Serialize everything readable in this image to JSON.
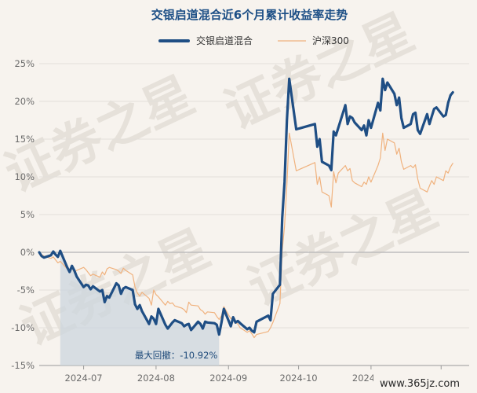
{
  "chart_data": {
    "type": "line",
    "title": "交银启道混合近6个月累计收益率走势",
    "ylim": [
      -15,
      25
    ],
    "yticks": [
      -15,
      -10,
      -5,
      0,
      5,
      10,
      15,
      20,
      25
    ],
    "ytick_labels": [
      "-15%",
      "-10%",
      "-5%",
      "0%",
      "5%",
      "10%",
      "15%",
      "20%",
      "25%"
    ],
    "x_start": "2024-06-12",
    "x_end": "2024-12-13",
    "xticks": [
      {
        "date": "2024-07-01",
        "label": "2024-07"
      },
      {
        "date": "2024-08-01",
        "label": "2024-08"
      },
      {
        "date": "2024-09-01",
        "label": "2024-09"
      },
      {
        "date": "2024-10-01",
        "label": "2024-10"
      },
      {
        "date": "2024-11-01",
        "label": "2024-11"
      },
      {
        "date": "2024-12-01",
        "label": "2024-12"
      }
    ],
    "grid": true,
    "legend_position": "top",
    "series": [
      {
        "name": "交银启道混合",
        "color": "#1f4e84",
        "points": [
          [
            "2024-06-12",
            0.0
          ],
          [
            "2024-06-13",
            -0.5
          ],
          [
            "2024-06-14",
            -0.7
          ],
          [
            "2024-06-17",
            -0.4
          ],
          [
            "2024-06-18",
            0.1
          ],
          [
            "2024-06-19",
            -0.3
          ],
          [
            "2024-06-20",
            -0.6
          ],
          [
            "2024-06-21",
            0.2
          ],
          [
            "2024-06-24",
            -2.0
          ],
          [
            "2024-06-25",
            -2.6
          ],
          [
            "2024-06-26",
            -1.8
          ],
          [
            "2024-06-27",
            -2.4
          ],
          [
            "2024-06-28",
            -3.2
          ],
          [
            "2024-07-01",
            -4.6
          ],
          [
            "2024-07-02",
            -4.3
          ],
          [
            "2024-07-03",
            -4.4
          ],
          [
            "2024-07-04",
            -4.9
          ],
          [
            "2024-07-05",
            -4.5
          ],
          [
            "2024-07-08",
            -5.2
          ],
          [
            "2024-07-09",
            -5.0
          ],
          [
            "2024-07-10",
            -6.6
          ],
          [
            "2024-07-11",
            -5.8
          ],
          [
            "2024-07-12",
            -6.0
          ],
          [
            "2024-07-15",
            -4.1
          ],
          [
            "2024-07-16",
            -4.4
          ],
          [
            "2024-07-17",
            -5.5
          ],
          [
            "2024-07-18",
            -4.8
          ],
          [
            "2024-07-19",
            -4.6
          ],
          [
            "2024-07-22",
            -5.0
          ],
          [
            "2024-07-23",
            -6.9
          ],
          [
            "2024-07-24",
            -7.5
          ],
          [
            "2024-07-25",
            -7.0
          ],
          [
            "2024-07-26",
            -7.8
          ],
          [
            "2024-07-29",
            -9.5
          ],
          [
            "2024-07-30",
            -8.5
          ],
          [
            "2024-07-31",
            -8.8
          ],
          [
            "2024-08-01",
            -9.5
          ],
          [
            "2024-08-02",
            -7.5
          ],
          [
            "2024-08-05",
            -9.6
          ],
          [
            "2024-08-06",
            -10.1
          ],
          [
            "2024-08-07",
            -9.7
          ],
          [
            "2024-08-08",
            -9.3
          ],
          [
            "2024-08-09",
            -9.0
          ],
          [
            "2024-08-12",
            -9.4
          ],
          [
            "2024-08-13",
            -9.8
          ],
          [
            "2024-08-14",
            -9.6
          ],
          [
            "2024-08-15",
            -9.5
          ],
          [
            "2024-08-16",
            -10.3
          ],
          [
            "2024-08-19",
            -9.2
          ],
          [
            "2024-08-20",
            -9.5
          ],
          [
            "2024-08-21",
            -10.1
          ],
          [
            "2024-08-22",
            -9.2
          ],
          [
            "2024-08-23",
            -9.3
          ],
          [
            "2024-08-26",
            -9.4
          ],
          [
            "2024-08-27",
            -9.6
          ],
          [
            "2024-08-28",
            -10.9
          ],
          [
            "2024-08-29",
            -9.3
          ],
          [
            "2024-08-30",
            -7.5
          ],
          [
            "2024-09-02",
            -9.8
          ],
          [
            "2024-09-03",
            -8.6
          ],
          [
            "2024-09-04",
            -9.3
          ],
          [
            "2024-09-05",
            -9.1
          ],
          [
            "2024-09-06",
            -9.4
          ],
          [
            "2024-09-09",
            -10.2
          ],
          [
            "2024-09-10",
            -10.0
          ],
          [
            "2024-09-11",
            -10.4
          ],
          [
            "2024-09-12",
            -10.6
          ],
          [
            "2024-09-13",
            -9.2
          ],
          [
            "2024-09-18",
            -8.4
          ],
          [
            "2024-09-19",
            -9.0
          ],
          [
            "2024-09-20",
            -5.5
          ],
          [
            "2024-09-23",
            -4.3
          ],
          [
            "2024-09-24",
            4.5
          ],
          [
            "2024-09-25",
            9.3
          ],
          [
            "2024-09-26",
            17.5
          ],
          [
            "2024-09-27",
            23.0
          ],
          [
            "2024-09-30",
            16.3
          ],
          [
            "2024-10-08",
            17.0
          ],
          [
            "2024-10-09",
            14.0
          ],
          [
            "2024-10-10",
            15.0
          ],
          [
            "2024-10-11",
            12.0
          ],
          [
            "2024-10-14",
            11.5
          ],
          [
            "2024-10-15",
            10.9
          ],
          [
            "2024-10-16",
            16.0
          ],
          [
            "2024-10-17",
            15.5
          ],
          [
            "2024-10-18",
            16.5
          ],
          [
            "2024-10-21",
            19.5
          ],
          [
            "2024-10-22",
            17.0
          ],
          [
            "2024-10-23",
            18.0
          ],
          [
            "2024-10-24",
            17.8
          ],
          [
            "2024-10-25",
            17.2
          ],
          [
            "2024-10-28",
            16.2
          ],
          [
            "2024-10-29",
            16.8
          ],
          [
            "2024-10-30",
            15.5
          ],
          [
            "2024-10-31",
            17.5
          ],
          [
            "2024-11-01",
            16.5
          ],
          [
            "2024-11-04",
            19.8
          ],
          [
            "2024-11-05",
            18.8
          ],
          [
            "2024-11-06",
            23.0
          ],
          [
            "2024-11-07",
            21.5
          ],
          [
            "2024-11-08",
            22.5
          ],
          [
            "2024-11-11",
            21.0
          ],
          [
            "2024-11-12",
            19.5
          ],
          [
            "2024-11-13",
            20.5
          ],
          [
            "2024-11-14",
            17.8
          ],
          [
            "2024-11-15",
            16.5
          ],
          [
            "2024-11-18",
            17.0
          ],
          [
            "2024-11-19",
            18.3
          ],
          [
            "2024-11-20",
            18.5
          ],
          [
            "2024-11-21",
            16.2
          ],
          [
            "2024-11-22",
            15.7
          ],
          [
            "2024-11-25",
            18.3
          ],
          [
            "2024-11-26",
            17.0
          ],
          [
            "2024-11-27",
            18.0
          ],
          [
            "2024-11-28",
            19.0
          ],
          [
            "2024-11-29",
            19.2
          ],
          [
            "2024-12-02",
            18.0
          ],
          [
            "2024-12-03",
            18.2
          ],
          [
            "2024-12-04",
            19.8
          ],
          [
            "2024-12-05",
            20.8
          ],
          [
            "2024-12-06",
            21.2
          ]
        ]
      },
      {
        "name": "沪深300",
        "color": "#f0b27e",
        "points": [
          [
            "2024-06-12",
            0.0
          ],
          [
            "2024-06-13",
            -0.3
          ],
          [
            "2024-06-14",
            -0.5
          ],
          [
            "2024-06-17",
            -0.8
          ],
          [
            "2024-06-18",
            -0.6
          ],
          [
            "2024-06-19",
            -1.0
          ],
          [
            "2024-06-20",
            -1.4
          ],
          [
            "2024-06-21",
            -1.2
          ],
          [
            "2024-06-24",
            -2.2
          ],
          [
            "2024-06-25",
            -2.6
          ],
          [
            "2024-06-26",
            -2.0
          ],
          [
            "2024-06-27",
            -2.7
          ],
          [
            "2024-06-28",
            -2.4
          ],
          [
            "2024-07-01",
            -2.0
          ],
          [
            "2024-07-02",
            -2.3
          ],
          [
            "2024-07-03",
            -2.7
          ],
          [
            "2024-07-04",
            -3.1
          ],
          [
            "2024-07-05",
            -2.9
          ],
          [
            "2024-07-08",
            -3.3
          ],
          [
            "2024-07-09",
            -2.6
          ],
          [
            "2024-07-10",
            -3.0
          ],
          [
            "2024-07-11",
            -2.2
          ],
          [
            "2024-07-12",
            -2.0
          ],
          [
            "2024-07-15",
            -2.3
          ],
          [
            "2024-07-16",
            -2.5
          ],
          [
            "2024-07-17",
            -2.8
          ],
          [
            "2024-07-18",
            -2.1
          ],
          [
            "2024-07-19",
            -2.4
          ],
          [
            "2024-07-22",
            -3.0
          ],
          [
            "2024-07-23",
            -4.6
          ],
          [
            "2024-07-24",
            -5.4
          ],
          [
            "2024-07-25",
            -5.8
          ],
          [
            "2024-07-26",
            -5.3
          ],
          [
            "2024-07-29",
            -6.1
          ],
          [
            "2024-07-30",
            -7.0
          ],
          [
            "2024-07-31",
            -5.0
          ],
          [
            "2024-08-01",
            -5.6
          ],
          [
            "2024-08-02",
            -5.9
          ],
          [
            "2024-08-05",
            -7.0
          ],
          [
            "2024-08-06",
            -6.5
          ],
          [
            "2024-08-07",
            -6.8
          ],
          [
            "2024-08-08",
            -6.7
          ],
          [
            "2024-08-09",
            -7.1
          ],
          [
            "2024-08-12",
            -7.4
          ],
          [
            "2024-08-13",
            -7.6
          ],
          [
            "2024-08-14",
            -8.0
          ],
          [
            "2024-08-15",
            -6.6
          ],
          [
            "2024-08-16",
            -7.0
          ],
          [
            "2024-08-19",
            -7.1
          ],
          [
            "2024-08-20",
            -7.6
          ],
          [
            "2024-08-21",
            -7.8
          ],
          [
            "2024-08-22",
            -8.2
          ],
          [
            "2024-08-23",
            -7.9
          ],
          [
            "2024-08-26",
            -8.0
          ],
          [
            "2024-08-27",
            -8.5
          ],
          [
            "2024-08-28",
            -8.9
          ],
          [
            "2024-08-29",
            -8.4
          ],
          [
            "2024-08-30",
            -7.2
          ],
          [
            "2024-09-02",
            -8.8
          ],
          [
            "2024-09-03",
            -8.6
          ],
          [
            "2024-09-04",
            -9.3
          ],
          [
            "2024-09-05",
            -9.5
          ],
          [
            "2024-09-06",
            -10.0
          ],
          [
            "2024-09-09",
            -10.6
          ],
          [
            "2024-09-10",
            -10.4
          ],
          [
            "2024-09-11",
            -10.8
          ],
          [
            "2024-09-12",
            -11.3
          ],
          [
            "2024-09-13",
            -10.9
          ],
          [
            "2024-09-18",
            -10.5
          ],
          [
            "2024-09-19",
            -10.0
          ],
          [
            "2024-09-20",
            -9.3
          ],
          [
            "2024-09-23",
            -6.8
          ],
          [
            "2024-09-24",
            0.2
          ],
          [
            "2024-09-25",
            3.5
          ],
          [
            "2024-09-26",
            9.0
          ],
          [
            "2024-09-27",
            15.8
          ],
          [
            "2024-09-30",
            10.8
          ],
          [
            "2024-10-08",
            11.9
          ],
          [
            "2024-10-09",
            9.0
          ],
          [
            "2024-10-10",
            10.0
          ],
          [
            "2024-10-11",
            8.0
          ],
          [
            "2024-10-14",
            7.5
          ],
          [
            "2024-10-15",
            6.0
          ],
          [
            "2024-10-16",
            10.7
          ],
          [
            "2024-10-17",
            9.2
          ],
          [
            "2024-10-18",
            10.5
          ],
          [
            "2024-10-21",
            11.5
          ],
          [
            "2024-10-22",
            10.8
          ],
          [
            "2024-10-23",
            11.1
          ],
          [
            "2024-10-24",
            9.5
          ],
          [
            "2024-10-25",
            9.2
          ],
          [
            "2024-10-28",
            8.7
          ],
          [
            "2024-10-29",
            9.3
          ],
          [
            "2024-10-30",
            9.0
          ],
          [
            "2024-10-31",
            10.0
          ],
          [
            "2024-11-01",
            9.3
          ],
          [
            "2024-11-04",
            11.5
          ],
          [
            "2024-11-05",
            12.5
          ],
          [
            "2024-11-06",
            15.8
          ],
          [
            "2024-11-07",
            13.5
          ],
          [
            "2024-11-08",
            15.0
          ],
          [
            "2024-11-11",
            14.5
          ],
          [
            "2024-11-12",
            13.0
          ],
          [
            "2024-11-13",
            13.8
          ],
          [
            "2024-11-14",
            12.0
          ],
          [
            "2024-11-15",
            11.0
          ],
          [
            "2024-11-18",
            11.5
          ],
          [
            "2024-11-19",
            11.2
          ],
          [
            "2024-11-20",
            11.6
          ],
          [
            "2024-11-21",
            9.7
          ],
          [
            "2024-11-22",
            8.5
          ],
          [
            "2024-11-25",
            8.0
          ],
          [
            "2024-11-26",
            8.8
          ],
          [
            "2024-11-27",
            9.5
          ],
          [
            "2024-11-28",
            9.0
          ],
          [
            "2024-11-29",
            10.0
          ],
          [
            "2024-12-02",
            9.5
          ],
          [
            "2024-12-03",
            10.8
          ],
          [
            "2024-12-04",
            10.5
          ],
          [
            "2024-12-05",
            11.3
          ],
          [
            "2024-12-06",
            11.8
          ]
        ]
      }
    ],
    "max_drawdown": {
      "label": "最大回撤：-10.92%",
      "value": -10.92,
      "start": "2024-06-21",
      "end": "2024-08-28"
    }
  },
  "watermark": {
    "text": "证券之星",
    "site": "www.365jz.com"
  }
}
